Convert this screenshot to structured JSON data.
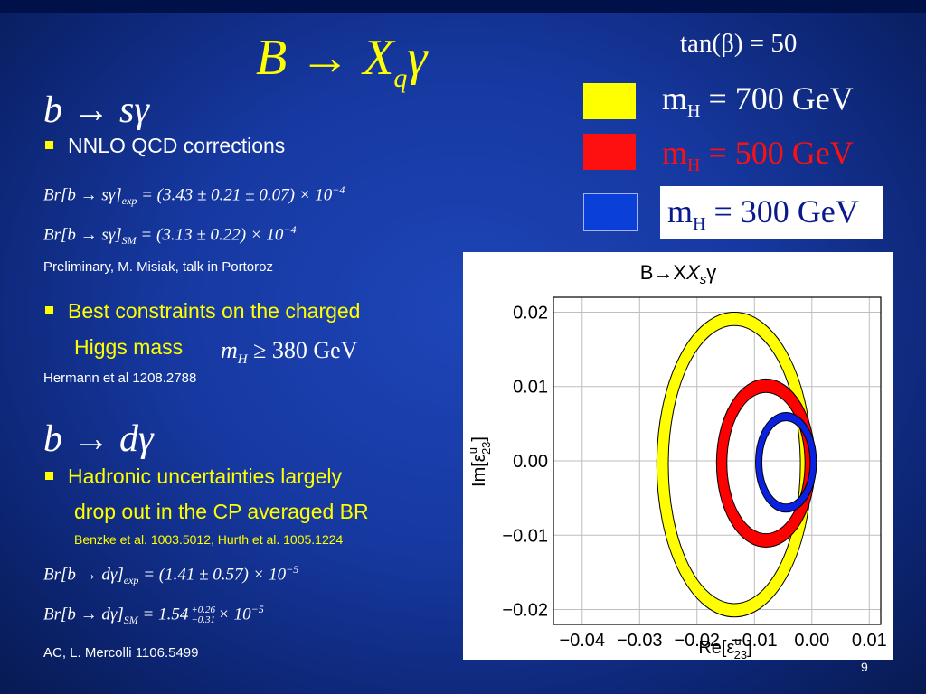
{
  "slide": {
    "title": "B → X",
    "title_sub": "q",
    "title_end": "γ",
    "tan_beta": "tan(β) = 50",
    "page_number": "9"
  },
  "legend": [
    {
      "label": "m",
      "sub": "H",
      "value": "= 700 GeV",
      "color": "#ffff00"
    },
    {
      "label": "m",
      "sub": "H",
      "value": "= 500 GeV",
      "color": "#ff1010"
    },
    {
      "label": "m",
      "sub": "H",
      "value": "= 300 GeV",
      "color": "#0a3fd8"
    }
  ],
  "section1": {
    "heading": "b → sγ",
    "bullet": "NNLO QCD corrections",
    "formula_exp": "Br[b → sγ]",
    "formula_exp_sub": "exp",
    "formula_exp_rhs": "= (3.43 ± 0.21 ± 0.07) × 10",
    "formula_exp_pow": "−4",
    "formula_sm": "Br[b → sγ]",
    "formula_sm_sub": "SM",
    "formula_sm_rhs": "= (3.13 ± 0.22) × 10",
    "formula_sm_pow": "−4",
    "ref": "Preliminary, M. Misiak, talk in Portoroz",
    "bullet2_line1": "Best constraints on the charged",
    "bullet2_line2": "Higgs mass",
    "mass_bound": "m",
    "mass_bound_sub": "H",
    "mass_bound_rhs": "≥ 380 GeV",
    "ref2": "Hermann et al 1208.2788"
  },
  "section2": {
    "heading": "b → dγ",
    "bullet_line1": "Hadronic uncertainties largely",
    "bullet_line2": "drop out in the CP averaged BR",
    "ref": "Benzke et al. 1003.5012, Hurth et al. 1005.1224",
    "formula_exp": "Br[b → dγ]",
    "formula_exp_sub": "exp",
    "formula_exp_rhs": "= (1.41 ± 0.57) × 10",
    "formula_exp_pow": "−5",
    "formula_sm": "Br[b → dγ]",
    "formula_sm_sub": "SM",
    "formula_sm_rhs": "= 1.54",
    "formula_sm_up": "+0.26",
    "formula_sm_dn": "−0.31",
    "formula_sm_tail": "× 10",
    "formula_sm_pow": "−5",
    "ref2": "AC, L. Mercolli 1106.5499"
  },
  "chart_data": {
    "type": "scatter",
    "title": "B→X",
    "title_sub": "s",
    "title_end": "γ",
    "xlabel": "Re[ε",
    "xlabel_sup": "u",
    "xlabel_sub": "23",
    "xlabel_end": "]",
    "ylabel": "Im[ε",
    "ylabel_sup": "u",
    "ylabel_sub": "23",
    "ylabel_end": "]",
    "xlim": [
      -0.045,
      0.012
    ],
    "ylim": [
      -0.022,
      0.022
    ],
    "xticks": [
      -0.04,
      -0.03,
      -0.02,
      -0.01,
      0.0,
      0.01
    ],
    "xtick_labels": [
      "−0.04",
      "−0.03",
      "−0.02",
      "−0.01",
      "0.00",
      "0.01"
    ],
    "yticks": [
      -0.02,
      -0.01,
      0.0,
      0.01,
      0.02
    ],
    "ytick_labels": [
      "−0.02",
      "−0.01",
      "0.00",
      "0.01",
      "0.02"
    ],
    "grid": true,
    "series": [
      {
        "name": "m_H = 700 GeV",
        "color": "#ffff00",
        "shape": "ring",
        "center": [
          -0.0135,
          -0.0005
        ],
        "outer_radii": [
          0.0135,
          0.0205
        ],
        "inner_radii": [
          0.0115,
          0.0187
        ]
      },
      {
        "name": "m_H = 500 GeV",
        "color": "#ff0000",
        "shape": "ring",
        "center": [
          -0.008,
          -0.0003
        ],
        "outer_radii": [
          0.0086,
          0.0113
        ],
        "inner_radii": [
          0.0068,
          0.0095
        ]
      },
      {
        "name": "m_H = 300 GeV",
        "color": "#0a22e0",
        "shape": "ring",
        "center": [
          -0.0045,
          -0.0002
        ],
        "outer_radii": [
          0.0053,
          0.0067
        ],
        "inner_radii": [
          0.0042,
          0.0056
        ]
      }
    ]
  }
}
